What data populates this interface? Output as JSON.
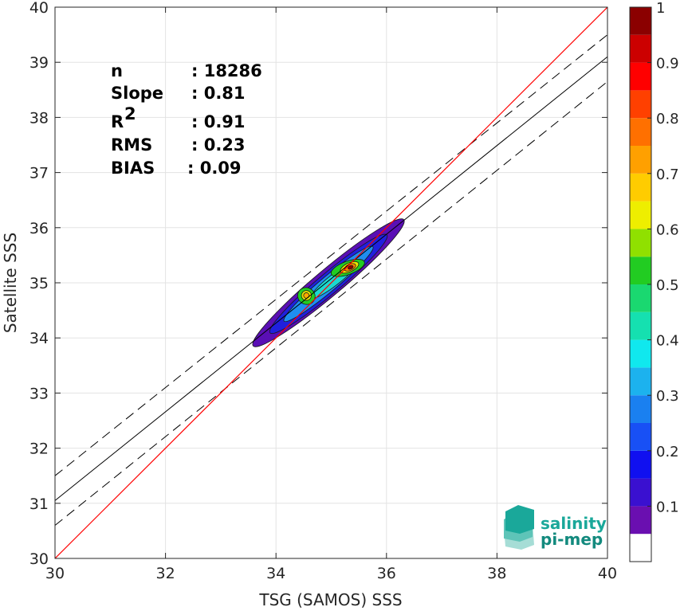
{
  "chart_data": {
    "type": "heatmap",
    "xlabel": "TSG (SAMOS) SSS",
    "ylabel": "Satellite SSS",
    "xlim": [
      30,
      40
    ],
    "ylim": [
      30,
      40
    ],
    "xticks": [
      "30",
      "32",
      "34",
      "36",
      "38",
      "40"
    ],
    "yticks": [
      "30",
      "31",
      "32",
      "33",
      "34",
      "35",
      "36",
      "37",
      "38",
      "39",
      "40"
    ],
    "grid": true,
    "stats": [
      {
        "label": "n",
        "value": ": 18286"
      },
      {
        "label": "Slope",
        "value": ": 0.81"
      },
      {
        "label": "R",
        "sup": "2",
        "value": ": 0.91"
      },
      {
        "label": "RMS",
        "value": ": 0.23"
      },
      {
        "label": "BIAS",
        "value": ": 0.09"
      }
    ],
    "identity_line": {
      "from": [
        30,
        30
      ],
      "to": [
        40,
        40
      ],
      "color": "#ff0000"
    },
    "regression_line": {
      "from": [
        30,
        31.05
      ],
      "to": [
        40,
        39.1
      ]
    },
    "confidence_lines": [
      {
        "from": [
          30,
          31.5
        ],
        "to": [
          40,
          39.5
        ]
      },
      {
        "from": [
          30,
          30.6
        ],
        "to": [
          40,
          38.65
        ]
      }
    ],
    "density_levels": [
      {
        "level": 0.05,
        "color": "#5a0fb5",
        "cx": 34.95,
        "cy": 35.0,
        "rx": 1.78,
        "ry": 0.24,
        "angle_deg": 40
      },
      {
        "level": 0.1,
        "color": "#2020dd",
        "cx": 34.95,
        "cy": 34.98,
        "rx": 1.38,
        "ry": 0.19,
        "angle_deg": 40
      },
      {
        "level": 0.25,
        "color": "#1f8ef0",
        "cx": 34.95,
        "cy": 34.98,
        "rx": 1.05,
        "ry": 0.14,
        "angle_deg": 40
      },
      {
        "level": 0.35,
        "color": "#1bd9d0",
        "cx": 35.05,
        "cy": 35.05,
        "rx": 0.52,
        "ry": 0.1,
        "angle_deg": 38
      },
      {
        "level": 0.5,
        "color": "#22cc22",
        "cx": 35.3,
        "cy": 35.27,
        "rx": 0.32,
        "ry": 0.12,
        "angle_deg": 20
      },
      {
        "level": 0.5,
        "color": "#22cc22",
        "cx": 34.55,
        "cy": 34.76,
        "rx": 0.15,
        "ry": 0.16,
        "angle_deg": 60
      },
      {
        "level": 0.65,
        "color": "#e8e800",
        "cx": 35.33,
        "cy": 35.28,
        "rx": 0.18,
        "ry": 0.08,
        "angle_deg": 25
      },
      {
        "level": 0.65,
        "color": "#e8e800",
        "cx": 34.55,
        "cy": 34.77,
        "rx": 0.09,
        "ry": 0.09,
        "angle_deg": 60
      },
      {
        "level": 0.8,
        "color": "#ff8800",
        "cx": 35.34,
        "cy": 35.28,
        "rx": 0.11,
        "ry": 0.055,
        "angle_deg": 25
      },
      {
        "level": 0.75,
        "color": "#ffaa00",
        "cx": 34.55,
        "cy": 34.77,
        "rx": 0.05,
        "ry": 0.05,
        "angle_deg": 60
      },
      {
        "level": 1.0,
        "color": "#8b0000",
        "cx": 35.35,
        "cy": 35.28,
        "rx": 0.05,
        "ry": 0.03,
        "angle_deg": 25
      }
    ],
    "colorbar": {
      "range": [
        0,
        1
      ],
      "ticks": [
        "0.1",
        "0.2",
        "0.3",
        "0.4",
        "0.5",
        "0.6",
        "0.7",
        "0.8",
        "0.9",
        "1"
      ],
      "bins": [
        {
          "from": 0.0,
          "to": 0.05,
          "color": "#ffffff"
        },
        {
          "from": 0.05,
          "to": 0.1,
          "color": "#6a0fb0"
        },
        {
          "from": 0.1,
          "to": 0.15,
          "color": "#3a10d0"
        },
        {
          "from": 0.15,
          "to": 0.2,
          "color": "#1010f0"
        },
        {
          "from": 0.2,
          "to": 0.25,
          "color": "#1850f5"
        },
        {
          "from": 0.25,
          "to": 0.3,
          "color": "#1a80f0"
        },
        {
          "from": 0.3,
          "to": 0.35,
          "color": "#1cb2ee"
        },
        {
          "from": 0.35,
          "to": 0.4,
          "color": "#10e8ee"
        },
        {
          "from": 0.4,
          "to": 0.45,
          "color": "#15e0b0"
        },
        {
          "from": 0.45,
          "to": 0.5,
          "color": "#1ad870"
        },
        {
          "from": 0.5,
          "to": 0.55,
          "color": "#22cc22"
        },
        {
          "from": 0.55,
          "to": 0.6,
          "color": "#90e000"
        },
        {
          "from": 0.6,
          "to": 0.65,
          "color": "#eeee00"
        },
        {
          "from": 0.65,
          "to": 0.7,
          "color": "#ffcc00"
        },
        {
          "from": 0.7,
          "to": 0.75,
          "color": "#ffa000"
        },
        {
          "from": 0.75,
          "to": 0.8,
          "color": "#ff7000"
        },
        {
          "from": 0.8,
          "to": 0.85,
          "color": "#ff4000"
        },
        {
          "from": 0.85,
          "to": 0.9,
          "color": "#ff0000"
        },
        {
          "from": 0.9,
          "to": 0.95,
          "color": "#cc0000"
        },
        {
          "from": 0.95,
          "to": 1.0,
          "color": "#8b0000"
        }
      ]
    }
  },
  "logo": {
    "line1": "salinity",
    "line2": "pi-mep",
    "colors": [
      "#1aa89a",
      "#138a7e",
      "#a6ddd6"
    ]
  }
}
